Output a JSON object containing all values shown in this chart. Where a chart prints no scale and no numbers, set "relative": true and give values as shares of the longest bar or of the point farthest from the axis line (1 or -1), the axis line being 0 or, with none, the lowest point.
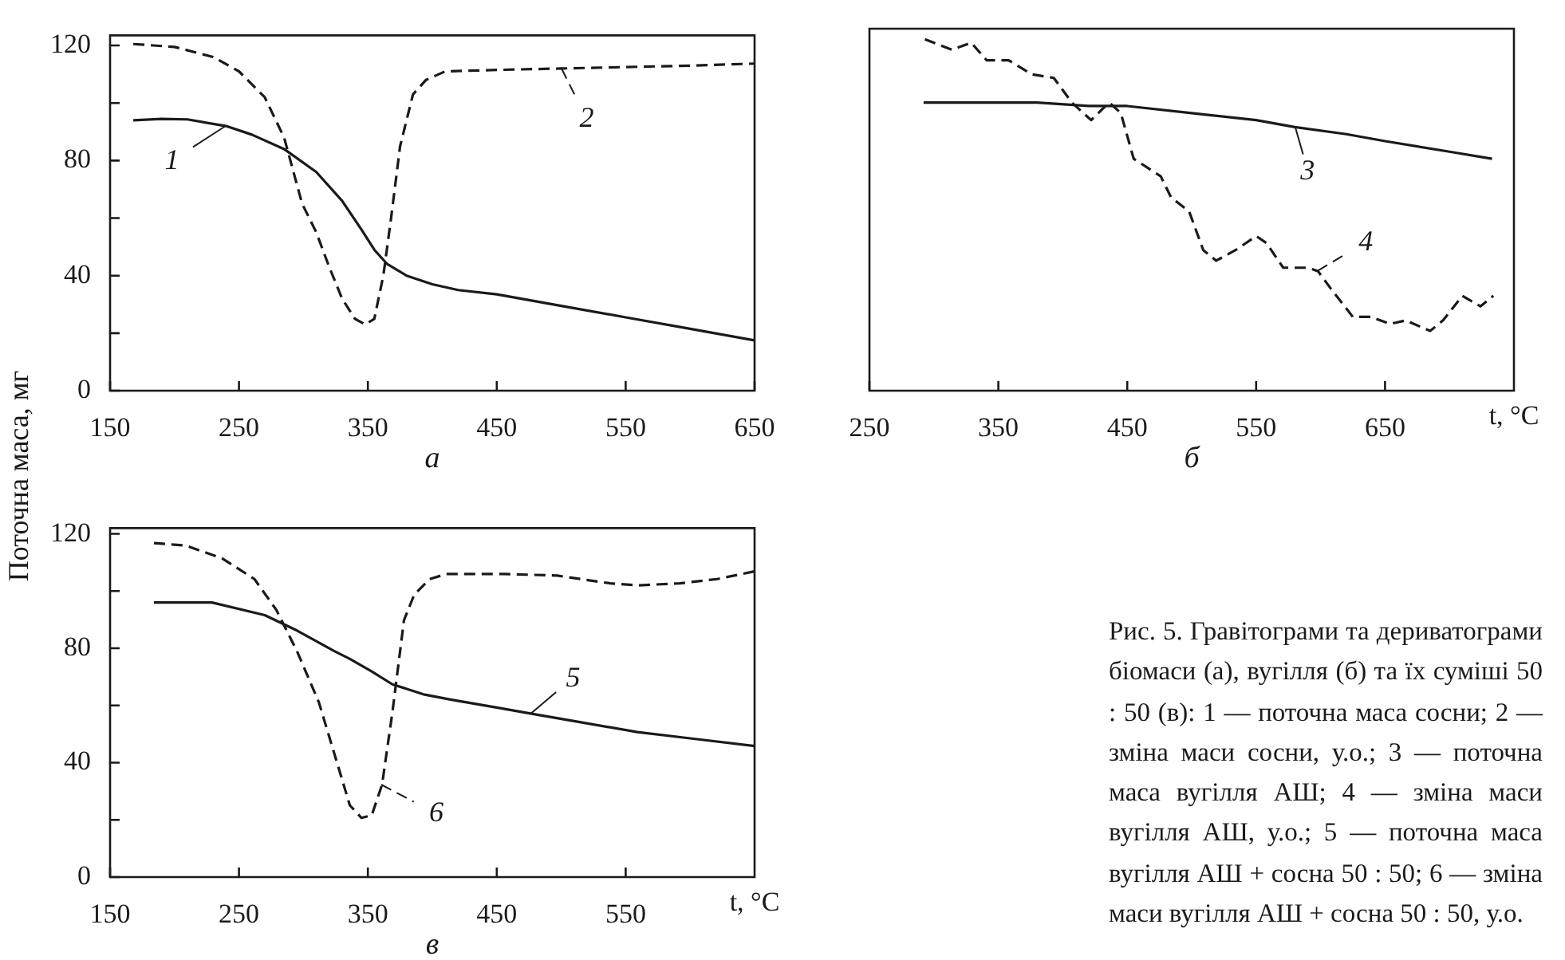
{
  "chart_data": [
    {
      "type": "line",
      "ylabel": "Поточна маса, мг",
      "annotations": [
        "а"
      ],
      "xlim": [
        150,
        650
      ],
      "xticks": [
        150,
        250,
        350,
        450,
        550,
        650
      ],
      "ylim": [
        0,
        123.5
      ],
      "yticks": [
        0,
        {
          "value": 20,
          "label": null
        },
        40,
        {
          "value": 60,
          "label": null
        },
        80,
        {
          "value": 100,
          "label": null
        },
        120
      ],
      "grid": false,
      "marker": "none",
      "series": [
        {
          "name": "1",
          "color": "#1a1a1a",
          "line_style": "solid",
          "x": [
            168,
            190,
            210,
            240,
            260,
            285,
            310,
            330,
            345,
            355,
            365,
            380,
            400,
            420,
            450,
            500,
            550,
            600,
            650
          ],
          "values": [
            94,
            94.5,
            94.3,
            92,
            89,
            84,
            76,
            66,
            56,
            49,
            44,
            40,
            37,
            35,
            33.5,
            29.5,
            25.5,
            21.5,
            17.5
          ]
        },
        {
          "name": "2",
          "color": "#1a1a1a",
          "line_style": "dashed",
          "x": [
            168,
            200,
            230,
            250,
            270,
            285,
            299,
            310,
            320,
            330,
            340,
            348,
            355,
            362,
            368,
            375,
            385,
            395,
            410,
            450,
            500,
            550,
            600,
            650
          ],
          "values": [
            120.5,
            119.5,
            116,
            111,
            102,
            88,
            65,
            55,
            43,
            32,
            25,
            23,
            25,
            40,
            60,
            85,
            103,
            108,
            111,
            111.5,
            112,
            112.5,
            113,
            113.7
          ]
        }
      ]
    },
    {
      "type": "line",
      "xlabel": "t, °C",
      "annotations": [
        "б"
      ],
      "xlim": [
        250,
        750
      ],
      "xticks": [
        250,
        350,
        450,
        550,
        650
      ],
      "relative": true,
      "grid": false,
      "marker": "none",
      "series": [
        {
          "name": "3",
          "color": "#1a1a1a",
          "line_style": "solid",
          "x": [
            292,
            340,
            380,
            420,
            450,
            500,
            550,
            580,
            620,
            650,
            700,
            733
          ],
          "values": [
            0.82,
            0.82,
            0.82,
            0.81,
            0.81,
            0.79,
            0.77,
            0.75,
            0.73,
            0.71,
            0.68,
            0.66
          ]
        },
        {
          "name": "4",
          "color": "#1a1a1a",
          "line_style": "dashed",
          "x": [
            293,
            314,
            329,
            341,
            358,
            376,
            393,
            407,
            422,
            436,
            445,
            455,
            476,
            484,
            498,
            509,
            519,
            534,
            550,
            558,
            571,
            590,
            598,
            608,
            625,
            639,
            654,
            666,
            685,
            695,
            710,
            724,
            734
          ],
          "values": [
            1,
            0.97,
            0.99,
            0.94,
            0.94,
            0.9,
            0.89,
            0.82,
            0.77,
            0.82,
            0.79,
            0.66,
            0.61,
            0.55,
            0.51,
            0.4,
            0.37,
            0.4,
            0.44,
            0.42,
            0.35,
            0.35,
            0.34,
            0.29,
            0.21,
            0.21,
            0.19,
            0.2,
            0.17,
            0.2,
            0.27,
            0.24,
            0.27
          ]
        }
      ]
    },
    {
      "type": "line",
      "xlabel": "t, °C",
      "annotations": [
        "в",
        "Рис. 5. Гравітограми та дериватограми біомаси (а), вугілля (б) та їх суміші 50 : 50 (в): 1 — поточна маса сосни; 2 — зміна маси сосни, у.о.; 3 — поточна маса вугілля АШ; 4 — зміна маси вугілля АШ, у.о.; 5 — поточна маса вугілля АШ + сосна 50 : 50; 6 — зміна маси вугілля АШ + сосна 50 : 50, у.о."
      ],
      "xlim": [
        150,
        650
      ],
      "xticks": [
        150,
        250,
        350,
        450,
        550
      ],
      "ylim": [
        0,
        122
      ],
      "yticks": [
        0,
        {
          "value": 20,
          "label": null
        },
        40,
        {
          "value": 60,
          "label": null
        },
        80,
        {
          "value": 100,
          "label": null
        },
        120
      ],
      "grid": false,
      "marker": "none",
      "series": [
        {
          "name": "5",
          "color": "#1a1a1a",
          "line_style": "solid",
          "x": [
            184,
            229,
            270,
            295,
            324,
            336,
            353,
            369,
            394,
            415,
            450,
            477,
            518,
            559,
            600,
            650
          ],
          "values": [
            96,
            96,
            91.6,
            86.2,
            79,
            76.3,
            71.9,
            67.4,
            63.8,
            62,
            59.3,
            57.1,
            53.9,
            50.7,
            48.5,
            45.8
          ]
        },
        {
          "name": "6",
          "color": "#1a1a1a",
          "line_style": "dashed",
          "x": [
            184,
            209,
            237,
            262,
            279,
            295,
            312,
            324,
            336,
            345,
            353,
            361,
            369,
            378,
            386,
            398,
            411,
            456,
            497,
            538,
            559,
            592,
            621,
            650
          ],
          "values": [
            116.8,
            115.9,
            111.4,
            104.2,
            93.4,
            79,
            61.1,
            43.1,
            25.1,
            20.7,
            21.6,
            32.3,
            57.5,
            89.8,
            98.8,
            104.2,
            106,
            106,
            105.4,
            102.7,
            102,
            102.7,
            104.2,
            106.9
          ]
        }
      ]
    }
  ]
}
